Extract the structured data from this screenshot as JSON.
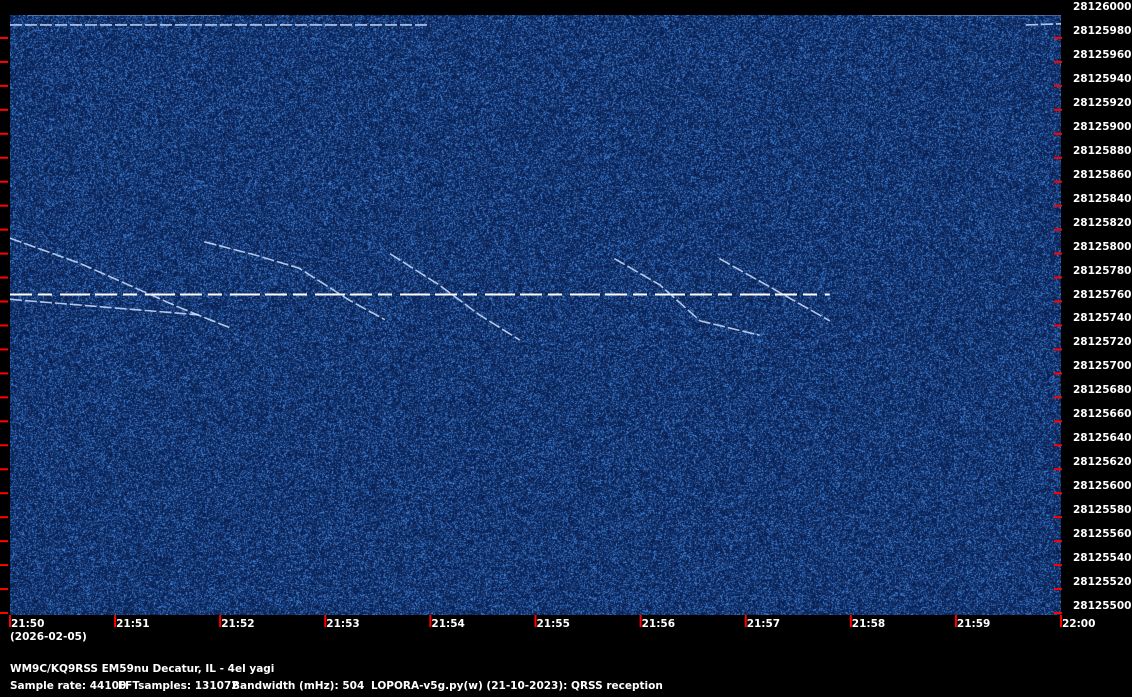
{
  "chart_data": {
    "type": "heatmap",
    "subtype": "spectrogram",
    "x_ticks": [
      "21:50",
      "21:51",
      "21:52",
      "21:53",
      "21:54",
      "21:55",
      "21:56",
      "21:57",
      "21:58",
      "21:59",
      "22:00"
    ],
    "date_label": "(2026-02-05)",
    "xlim": [
      "21:50:00",
      "22:00:00"
    ],
    "y_ticks": [
      28126000,
      28125980,
      28125960,
      28125940,
      28125920,
      28125900,
      28125880,
      28125860,
      28125840,
      28125820,
      28125800,
      28125780,
      28125760,
      28125740,
      28125720,
      28125700,
      28125680,
      28125660,
      28125640,
      28125620,
      28125600,
      28125580,
      28125560,
      28125540,
      28125520,
      28125500
    ],
    "ylim": [
      28125500,
      28126000
    ],
    "background_color": "#0c2757",
    "signal_color": "#ffffff",
    "tick_color": "#ff0000",
    "carrier": {
      "freq": 28125760,
      "start": "21:50:00",
      "end": "21:57:48",
      "keying": "dashed"
    },
    "traces": [
      {
        "points": [
          [
            "21:51:51",
            28125804
          ],
          [
            "21:52:20",
            28125793
          ],
          [
            "21:52:45",
            28125782
          ],
          [
            "21:53:14",
            28125755
          ],
          [
            "21:53:34",
            28125739
          ]
        ]
      },
      {
        "points": [
          [
            "21:50:00",
            28125807
          ],
          [
            "21:50:40",
            28125786
          ],
          [
            "21:51:37",
            28125749
          ],
          [
            "21:52:06",
            28125732
          ]
        ]
      },
      {
        "points": [
          [
            "21:53:37",
            28125794
          ],
          [
            "21:54:05",
            28125768
          ],
          [
            "21:54:28",
            28125743
          ],
          [
            "21:54:51",
            28125722
          ]
        ]
      },
      {
        "points": [
          [
            "21:55:45",
            28125790
          ],
          [
            "21:56:11",
            28125768
          ],
          [
            "21:56:34",
            28125738
          ],
          [
            "21:57:08",
            28125726
          ]
        ]
      },
      {
        "points": [
          [
            "21:56:45",
            28125790
          ],
          [
            "21:57:13",
            28125767
          ],
          [
            "21:57:48",
            28125738
          ]
        ]
      },
      {
        "points": [
          [
            "21:50:00",
            28125756
          ],
          [
            "21:51:48",
            28125743
          ]
        ]
      },
      {
        "points": [
          [
            "21:50:00",
            28125985
          ],
          [
            "21:54:00",
            28125985
          ]
        ]
      },
      {
        "points": [
          [
            "21:59:40",
            28125985
          ],
          [
            "22:00:00",
            28125986
          ]
        ]
      }
    ],
    "top_bands": [
      {
        "start": "21:50:10",
        "end": "21:52:00",
        "freq_low": 28125993,
        "freq_high": 28126000
      },
      {
        "start": "21:58:12",
        "end": "22:00:00",
        "freq_low": 28125993,
        "freq_high": 28126000
      }
    ]
  },
  "footer": {
    "station": "WM9C/KQ9RSS EM59nu Decatur, IL - 4el yagi",
    "sample_rate": "Sample rate: 44100",
    "fft_samples": "FFTsamples: 131072",
    "bandwidth": "Bandwidth (mHz): 504",
    "software": "LOPORA-v5g.py(w) (21-10-2023): QRSS reception"
  }
}
